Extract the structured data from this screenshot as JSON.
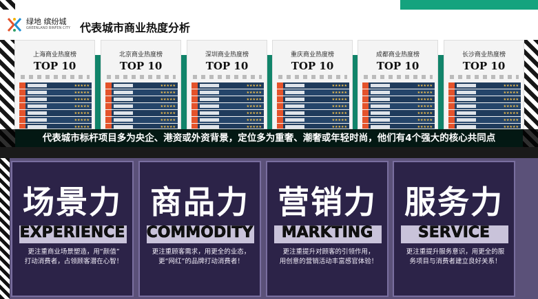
{
  "header": {
    "logo_text": "绿地 缤纷城",
    "logo_sub": "GREENLAND BINFEN CITY",
    "title": "代表城市商业热度分析"
  },
  "cards": [
    {
      "city": "上海商业热度榜",
      "label": "TOP 10"
    },
    {
      "city": "北京商业热度榜",
      "label": "TOP 10"
    },
    {
      "city": "深圳商业热度榜",
      "label": "TOP 10"
    },
    {
      "city": "重庆商业热度榜",
      "label": "TOP 10"
    },
    {
      "city": "成都商业热度榜",
      "label": "TOP 10"
    },
    {
      "city": "长沙商业热度榜",
      "label": "TOP 10"
    }
  ],
  "caption": "代表城市标杆项目多为央企、港资或外资背景，定位多为重奢、潮奢或年轻时尚，他们有4个强大的核心共同点",
  "panels": [
    {
      "cn": "场景力",
      "en": "EXPERIENCE",
      "line1": "更注重商业场景塑造，用“颜值”",
      "line2": "打动消费者，占领顾客潜在心智！"
    },
    {
      "cn": "商品力",
      "en": "COMMODITY",
      "line1": "更注重顾客需求，用更全的业态，",
      "line2": "更“网红”的品牌打动消费者！"
    },
    {
      "cn": "营销力",
      "en": "MARKTING",
      "line1": "更注重提升对顾客的引领作用，",
      "line2": "用创意的营销活动丰富感官体验！"
    },
    {
      "cn": "服务力",
      "en": "SERVICE",
      "line1": "更注重提升服务意识，用更全的服",
      "line2": "务项目与消费者建立良好关系！"
    }
  ],
  "icons": {
    "logo": "colorful-x-logo-icon",
    "rating": "star-icon"
  },
  "colors": {
    "teal": "#11846a",
    "purple": "#5b5179",
    "panel": "#2c2348"
  }
}
